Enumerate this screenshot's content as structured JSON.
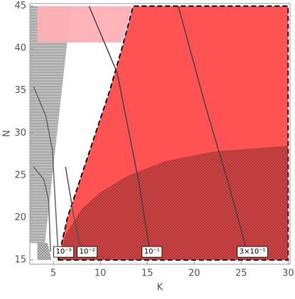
{
  "chart_data": {
    "type": "region",
    "xlabel": "K",
    "ylabel": "N",
    "xlim": [
      2.5,
      30.2
    ],
    "ylim": [
      14.5,
      45.3
    ],
    "xticks": [
      5,
      10,
      15,
      20,
      25,
      30
    ],
    "yticks": [
      15,
      20,
      25,
      30,
      35,
      40,
      45
    ],
    "regions": [
      {
        "color": "#888888",
        "hatch": "horizontal",
        "x": [
          2.5,
          4.1,
          6.9,
          2.5
        ],
        "y": [
          17,
          17,
          45,
          45
        ]
      },
      {
        "color": "#888888",
        "hatch": "cross",
        "x": [
          3.3,
          4.8,
          4.4,
          3.3
        ],
        "y": [
          15,
          15,
          17,
          17
        ]
      },
      {
        "color": "#ff4a4a",
        "outline": "dashed",
        "x": [
          5.5,
          6.5,
          8,
          9.5,
          11,
          12.3,
          13.5,
          30,
          30
        ],
        "y": [
          15,
          20,
          25,
          30,
          35,
          40,
          45,
          45,
          15
        ]
      },
      {
        "color": "#ffb0b6",
        "x": [
          3.3,
          12.3,
          13.4,
          3.3
        ],
        "y": [
          40.7,
          40.7,
          45,
          45
        ]
      },
      {
        "color": "#b83030",
        "hatch": "cross",
        "x": [
          5.6,
          6.3,
          8,
          10,
          13,
          17,
          22,
          30,
          30
        ],
        "y": [
          15,
          18,
          21,
          23,
          25,
          26.7,
          27.8,
          28.5,
          15
        ]
      }
    ],
    "contours": [
      {
        "color": "#666666",
        "x": [
          2.9,
          4.2,
          4.9,
          5.2,
          5.5
        ],
        "y": [
          35.5,
          32,
          28,
          22,
          16
        ],
        "label": "10⁻³",
        "label_at": [
          6.1,
          16
        ]
      },
      {
        "color": "#666666",
        "x": [
          2.9,
          4.0,
          4.5,
          4.7
        ],
        "y": [
          26,
          24.5,
          22,
          16
        ]
      },
      {
        "color": "#555555",
        "x": [
          6.3,
          7.2,
          8
        ],
        "y": [
          26,
          20,
          16
        ],
        "label": "10⁻²",
        "label_at": [
          8.6,
          16
        ]
      },
      {
        "color": "#444444",
        "x": [
          8.8,
          11.8,
          14.1,
          15.2
        ],
        "y": [
          45,
          37.1,
          24.2,
          16.5
        ],
        "label": "10⁻¹",
        "label_at": [
          15.5,
          16
        ]
      },
      {
        "color": "#444444",
        "x": [
          18.3,
          21.3,
          23.6,
          25.5
        ],
        "y": [
          45,
          32.8,
          24.2,
          16.5
        ],
        "label": "3×10⁻¹",
        "label_at": [
          26.2,
          16
        ]
      }
    ]
  }
}
